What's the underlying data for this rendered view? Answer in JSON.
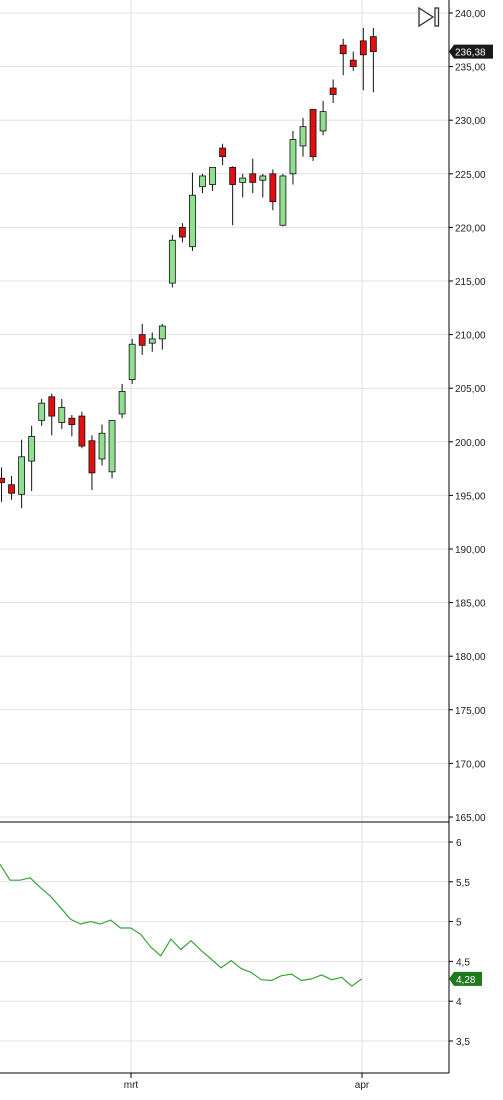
{
  "chart_data": [
    {
      "type": "candlestick",
      "title": "",
      "ylim": [
        165,
        240
      ],
      "y_ticks": [
        "240,00",
        "235,00",
        "230,00",
        "225,00",
        "220,00",
        "215,00",
        "210,00",
        "205,00",
        "200,00",
        "195,00",
        "190,00",
        "185,00",
        "180,00",
        "175,00",
        "170,00",
        "165,00"
      ],
      "x_ticks": [
        "mrt",
        "apr"
      ],
      "last_value_label": "236,38",
      "grid": true,
      "colors": {
        "up": "#90e090",
        "down": "#e01010",
        "last_badge": "#1a1a1a"
      },
      "candles": [
        {
          "o": 196.6,
          "h": 197.6,
          "l": 194.4,
          "c": 196.2
        },
        {
          "o": 196.0,
          "h": 196.8,
          "l": 194.6,
          "c": 195.2
        },
        {
          "o": 195.1,
          "h": 200.2,
          "l": 193.8,
          "c": 198.6
        },
        {
          "o": 198.2,
          "h": 201.5,
          "l": 195.4,
          "c": 200.5
        },
        {
          "o": 202.0,
          "h": 204.0,
          "l": 201.5,
          "c": 203.6
        },
        {
          "o": 204.2,
          "h": 204.5,
          "l": 200.6,
          "c": 202.4
        },
        {
          "o": 201.8,
          "h": 204.0,
          "l": 201.2,
          "c": 203.2
        },
        {
          "o": 202.2,
          "h": 202.5,
          "l": 200.5,
          "c": 201.6
        },
        {
          "o": 202.4,
          "h": 202.8,
          "l": 199.4,
          "c": 199.6
        },
        {
          "o": 200.1,
          "h": 200.6,
          "l": 195.5,
          "c": 197.1
        },
        {
          "o": 198.4,
          "h": 201.6,
          "l": 197.8,
          "c": 200.8
        },
        {
          "o": 197.2,
          "h": 202.0,
          "l": 196.6,
          "c": 202.0
        },
        {
          "o": 202.6,
          "h": 205.4,
          "l": 202.2,
          "c": 204.7
        },
        {
          "o": 205.8,
          "h": 209.6,
          "l": 205.4,
          "c": 209.1
        },
        {
          "o": 210.0,
          "h": 211.0,
          "l": 208.1,
          "c": 209.0
        },
        {
          "o": 209.2,
          "h": 210.2,
          "l": 208.4,
          "c": 209.6
        },
        {
          "o": 209.6,
          "h": 211.0,
          "l": 208.6,
          "c": 210.8
        },
        {
          "o": 214.8,
          "h": 219.3,
          "l": 214.4,
          "c": 218.8
        },
        {
          "o": 220.0,
          "h": 220.4,
          "l": 218.6,
          "c": 219.1
        },
        {
          "o": 218.2,
          "h": 225.1,
          "l": 217.8,
          "c": 223.0
        },
        {
          "o": 223.8,
          "h": 225.0,
          "l": 223.2,
          "c": 224.8
        },
        {
          "o": 224.0,
          "h": 225.6,
          "l": 223.4,
          "c": 225.6
        },
        {
          "o": 227.4,
          "h": 227.8,
          "l": 225.8,
          "c": 226.6
        },
        {
          "o": 225.6,
          "h": 225.7,
          "l": 220.2,
          "c": 224.0
        },
        {
          "o": 224.2,
          "h": 225.0,
          "l": 222.8,
          "c": 224.6
        },
        {
          "o": 225.0,
          "h": 226.4,
          "l": 223.2,
          "c": 224.2
        },
        {
          "o": 224.4,
          "h": 225.0,
          "l": 222.8,
          "c": 224.8
        },
        {
          "o": 225.0,
          "h": 225.4,
          "l": 221.6,
          "c": 222.4
        },
        {
          "o": 220.2,
          "h": 225.0,
          "l": 220.1,
          "c": 224.8
        },
        {
          "o": 225.0,
          "h": 229.0,
          "l": 224.0,
          "c": 228.2
        },
        {
          "o": 227.6,
          "h": 230.2,
          "l": 226.6,
          "c": 229.4
        },
        {
          "o": 231.0,
          "h": 231.0,
          "l": 226.2,
          "c": 226.6
        },
        {
          "o": 229.0,
          "h": 231.8,
          "l": 228.6,
          "c": 230.8
        },
        {
          "o": 233.0,
          "h": 233.8,
          "l": 231.6,
          "c": 232.4
        },
        {
          "o": 237.0,
          "h": 237.6,
          "l": 234.2,
          "c": 236.2
        },
        {
          "o": 235.6,
          "h": 236.4,
          "l": 234.6,
          "c": 235.0
        },
        {
          "o": 237.4,
          "h": 238.6,
          "l": 232.8,
          "c": 236.1
        },
        {
          "o": 237.8,
          "h": 238.6,
          "l": 232.6,
          "c": 236.4
        }
      ]
    },
    {
      "type": "line",
      "title": "",
      "ylim": [
        3.2,
        6.2
      ],
      "y_ticks": [
        "6",
        "5,5",
        "5",
        "4,5",
        "4",
        "3,5"
      ],
      "x_ticks": [
        "mrt",
        "apr"
      ],
      "last_value_label": "4,28",
      "grid": true,
      "colors": {
        "line": "#3aa33a",
        "last_badge": "#1f7a1f"
      },
      "values": [
        5.72,
        5.52,
        5.52,
        5.55,
        5.43,
        5.32,
        5.18,
        5.03,
        4.97,
        5.0,
        4.97,
        5.02,
        4.92,
        4.92,
        4.84,
        4.68,
        4.57,
        4.78,
        4.65,
        4.76,
        4.64,
        4.53,
        4.42,
        4.51,
        4.41,
        4.36,
        4.27,
        4.26,
        4.32,
        4.34,
        4.26,
        4.28,
        4.33,
        4.27,
        4.3,
        4.19,
        4.28
      ]
    }
  ],
  "toolbar": {
    "end_button_icon": "go-to-end-icon"
  }
}
